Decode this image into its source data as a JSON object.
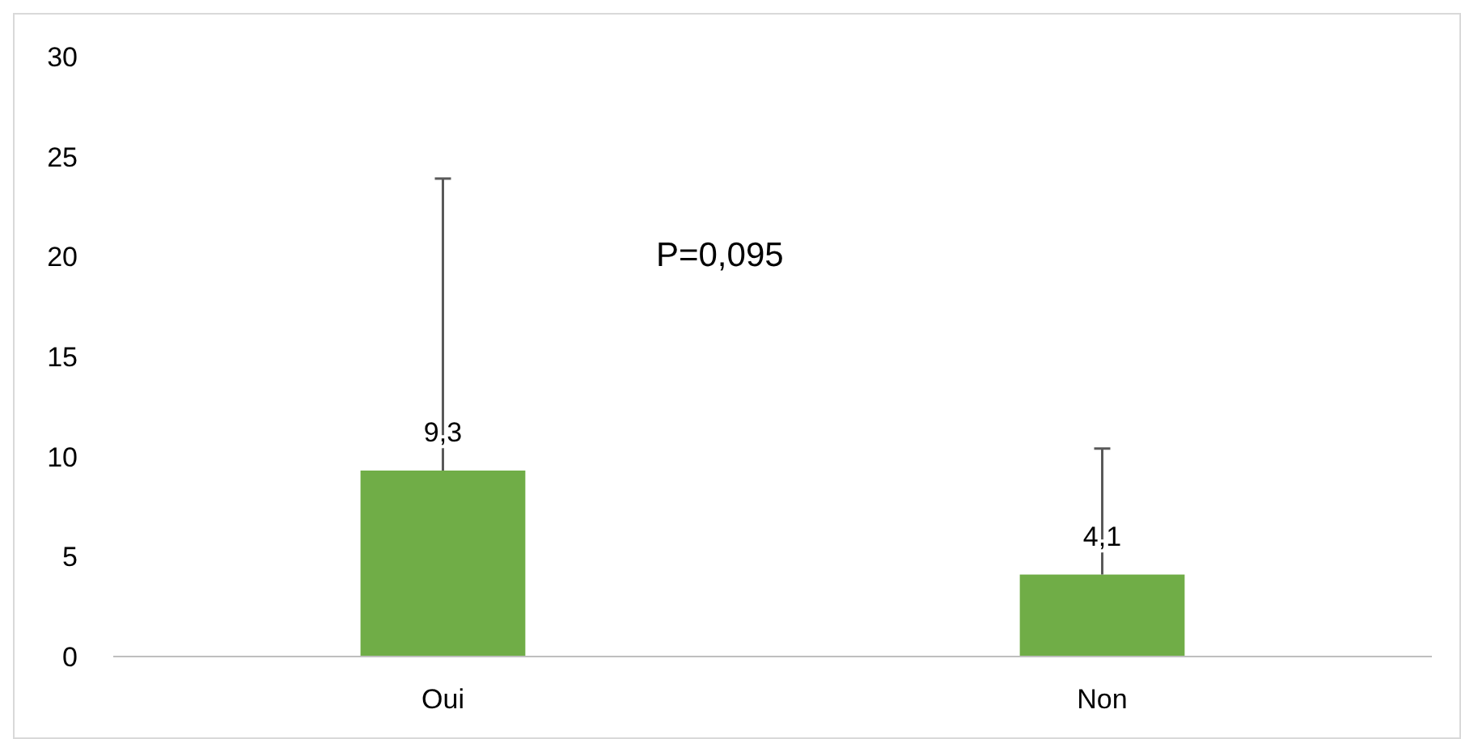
{
  "chart_data": {
    "type": "bar",
    "categories": [
      "Oui",
      "Non"
    ],
    "values": [
      9.3,
      4.1
    ],
    "color": "#70ad47",
    "errors": [
      [
        9.3,
        23.9
      ],
      [
        4.1,
        10.4
      ]
    ],
    "value_labels": [
      "9,3",
      "4,1"
    ],
    "annotations": [
      "P=0,095"
    ],
    "ylim": [
      0,
      30
    ],
    "yticks": [
      0,
      5,
      10,
      15,
      20,
      25,
      30
    ],
    "grid": false
  }
}
